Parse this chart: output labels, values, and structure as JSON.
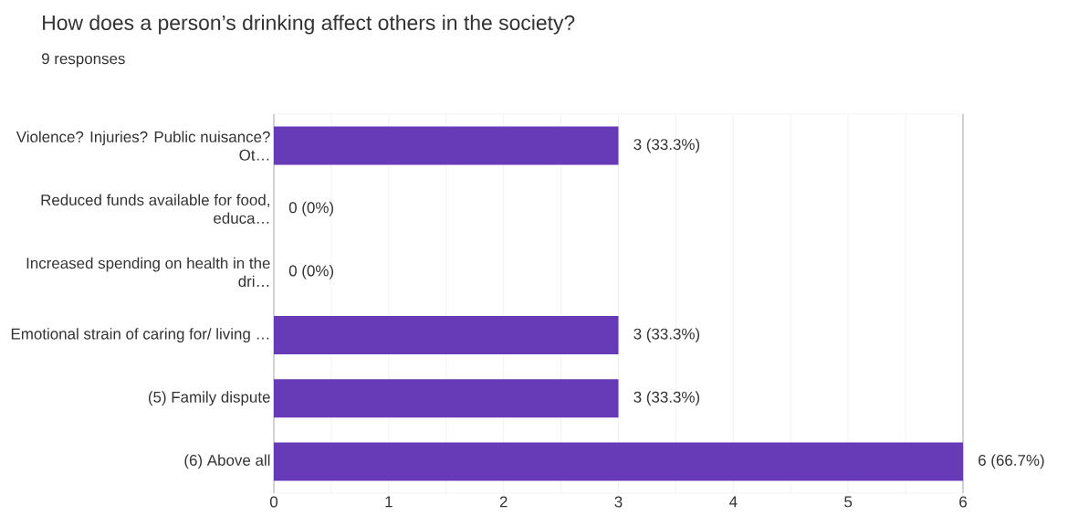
{
  "chart_data": {
    "type": "bar",
    "orientation": "horizontal",
    "title": "How does a person’s drinking affect others in the society?",
    "subtitle": "9 responses",
    "categories": [
      "Violence? Injuries? Public nuisance? Ot…",
      "Reduced funds available for food, educa…",
      "Increased spending on health in the dri…",
      "Emotional strain of caring for/ living …",
      "(5) Family dispute",
      "(6) Above all"
    ],
    "values": [
      3,
      0,
      0,
      3,
      3,
      6
    ],
    "value_labels": [
      "3 (33.3%)",
      "0 (0%)",
      "0 (0%)",
      "3 (33.3%)",
      "3 (33.3%)",
      "6 (66.7%)"
    ],
    "color": "#673ab7",
    "xlim": [
      0,
      6
    ],
    "xticks": [
      0,
      {
        "value": 0.5,
        "label": null
      },
      1,
      {
        "value": 1.5,
        "label": null
      },
      2,
      {
        "value": 2.5,
        "label": null
      },
      3,
      {
        "value": 3.5,
        "label": null
      },
      4,
      {
        "value": 4.5,
        "label": null
      },
      5,
      {
        "value": 5.5,
        "label": null
      },
      6
    ],
    "grid": "x"
  }
}
